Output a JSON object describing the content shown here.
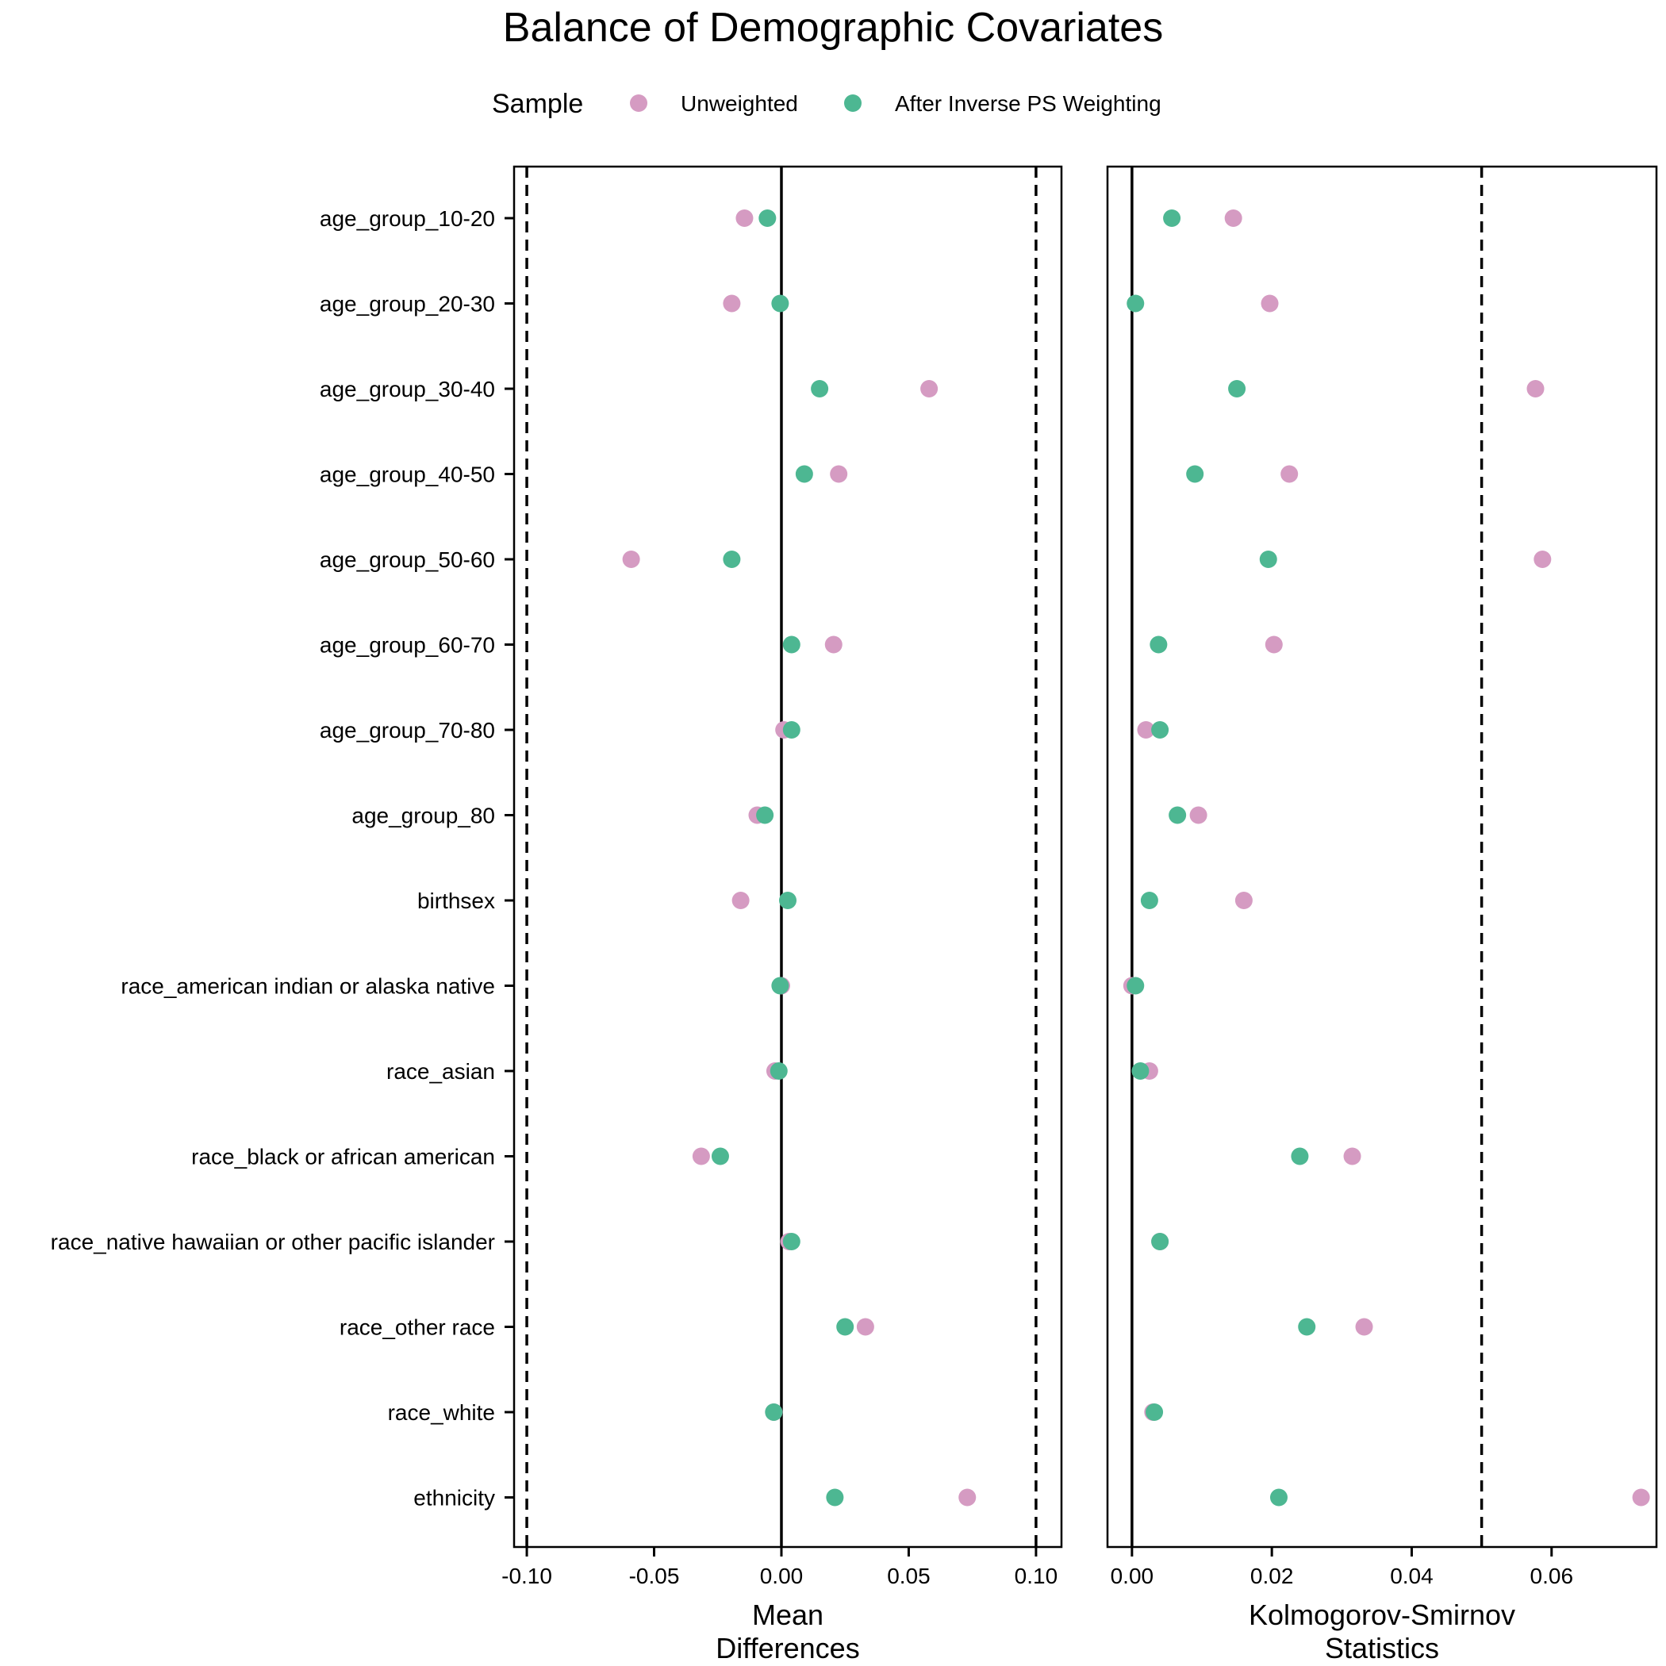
{
  "chart_data": {
    "type": "scatter",
    "title": "Balance of Demographic Covariates",
    "legend": {
      "title": "Sample",
      "placement": "top",
      "entries": [
        {
          "name": "Unweighted",
          "color": "#D59BC2"
        },
        {
          "name": "After Inverse PS Weighting",
          "color": "#4DB792"
        }
      ]
    },
    "categories": [
      "age_group_10-20",
      "age_group_20-30",
      "age_group_30-40",
      "age_group_40-50",
      "age_group_50-60",
      "age_group_60-70",
      "age_group_70-80",
      "age_group_80",
      "birthsex",
      "race_american indian or alaska native",
      "race_asian",
      "race_black or african american",
      "race_native hawaiian or other pacific islander",
      "race_other race",
      "race_white",
      "ethnicity"
    ],
    "panels": [
      {
        "xlabel_lines": [
          "Mean",
          "Differences"
        ],
        "xlim": [
          -0.105,
          0.11
        ],
        "xticks": [
          -0.1,
          -0.05,
          0.0,
          0.05,
          0.1
        ],
        "xtick_labels": [
          "-0.10",
          "-0.05",
          "0.00",
          "0.05",
          "0.10"
        ],
        "zero_line": 0,
        "threshold_lines": [
          -0.1,
          0.1
        ],
        "series": [
          {
            "name": "Unweighted",
            "values": [
              -0.0145,
              -0.0195,
              0.058,
              0.0225,
              -0.059,
              0.0205,
              0.001,
              -0.0095,
              -0.016,
              0.0,
              -0.0025,
              -0.0315,
              0.003,
              0.033,
              -0.003,
              0.073
            ]
          },
          {
            "name": "After Inverse PS Weighting",
            "values": [
              -0.0055,
              -0.0005,
              0.015,
              0.009,
              -0.0195,
              0.004,
              0.004,
              -0.0065,
              0.0025,
              -0.0005,
              -0.001,
              -0.024,
              0.004,
              0.025,
              -0.003,
              0.021
            ]
          }
        ]
      },
      {
        "xlabel_lines": [
          "Kolmogorov-Smirnov",
          "Statistics"
        ],
        "xlim": [
          -0.0035,
          0.075
        ],
        "xticks": [
          0.0,
          0.02,
          0.04,
          0.06
        ],
        "xtick_labels": [
          "0.00",
          "0.02",
          "0.04",
          "0.06"
        ],
        "zero_line": 0,
        "threshold_lines": [
          0.05
        ],
        "series": [
          {
            "name": "Unweighted",
            "values": [
              0.0145,
              0.0197,
              0.0577,
              0.0225,
              0.0587,
              0.0203,
              0.002,
              0.0095,
              0.016,
              0.0,
              0.0025,
              0.0315,
              0.004,
              0.0332,
              0.003,
              0.0728
            ]
          },
          {
            "name": "After Inverse PS Weighting",
            "values": [
              0.0057,
              0.0005,
              0.015,
              0.009,
              0.0195,
              0.0038,
              0.004,
              0.0065,
              0.0025,
              0.0005,
              0.0012,
              0.024,
              0.004,
              0.025,
              0.0032,
              0.021
            ]
          }
        ]
      }
    ]
  }
}
